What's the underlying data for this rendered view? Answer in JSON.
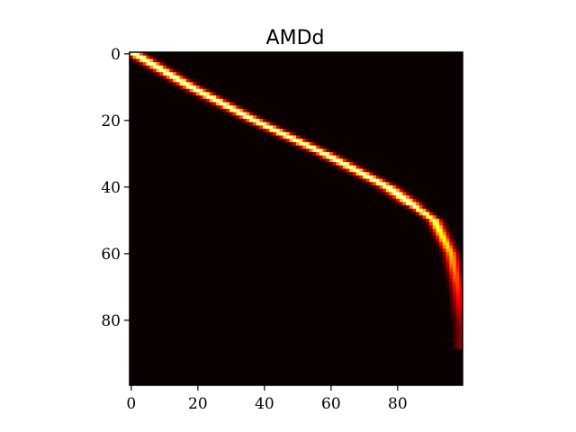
{
  "chart_data": {
    "type": "heatmap",
    "title": "AMDd",
    "xlabel": "",
    "ylabel": "",
    "colormap": "hot",
    "rows": 100,
    "cols": 100,
    "xlim": [
      0,
      99
    ],
    "ylim": [
      99,
      0
    ],
    "x_ticks": [
      0,
      20,
      40,
      60,
      80
    ],
    "y_ticks": [
      0,
      20,
      40,
      60,
      80
    ],
    "grid": false,
    "ridge": {
      "description_points": [
        {
          "row": 0,
          "col": 1
        },
        {
          "row": 10,
          "col": 18
        },
        {
          "row": 20,
          "col": 37
        },
        {
          "row": 30,
          "col": 58
        },
        {
          "row": 40,
          "col": 77
        },
        {
          "row": 50,
          "col": 91
        },
        {
          "row": 60,
          "col": 96
        },
        {
          "row": 70,
          "col": 98
        },
        {
          "row": 80,
          "col": 99
        }
      ],
      "peak_value": 1.0
    }
  }
}
